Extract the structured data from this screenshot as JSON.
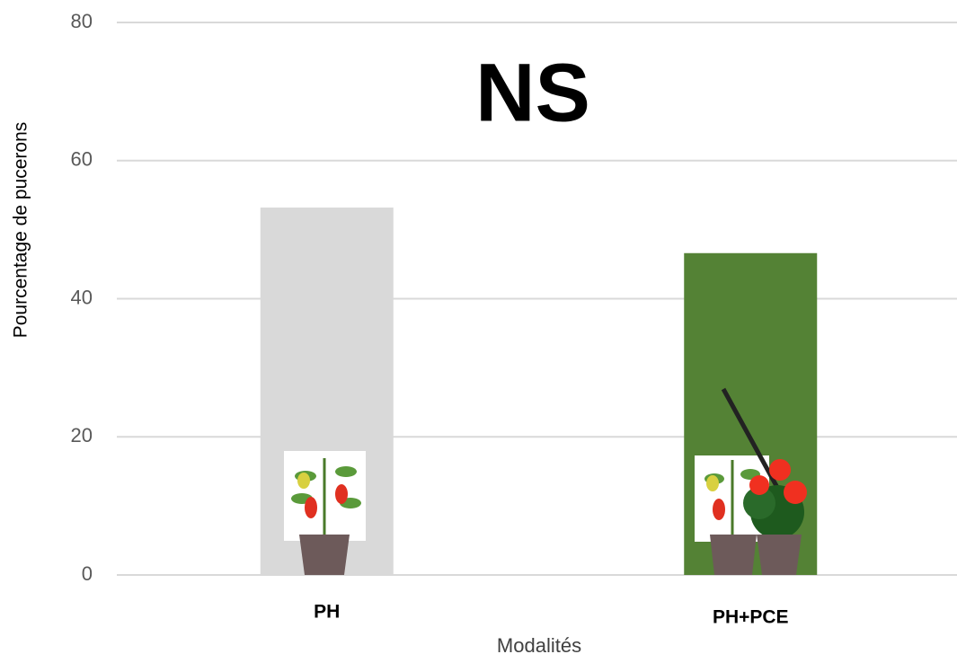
{
  "chart_data": {
    "type": "bar",
    "annotation": "NS",
    "xlabel": "Modalités",
    "ylabel": "Pourcentage de pucerons",
    "categories": [
      "PH",
      "PH+PCE"
    ],
    "values": [
      53.2,
      46.6
    ],
    "colors": [
      "#d9d9d9",
      "#548235"
    ],
    "ylim": [
      0,
      80
    ],
    "yticks": [
      0,
      20,
      40,
      60,
      80
    ],
    "grid": true
  }
}
